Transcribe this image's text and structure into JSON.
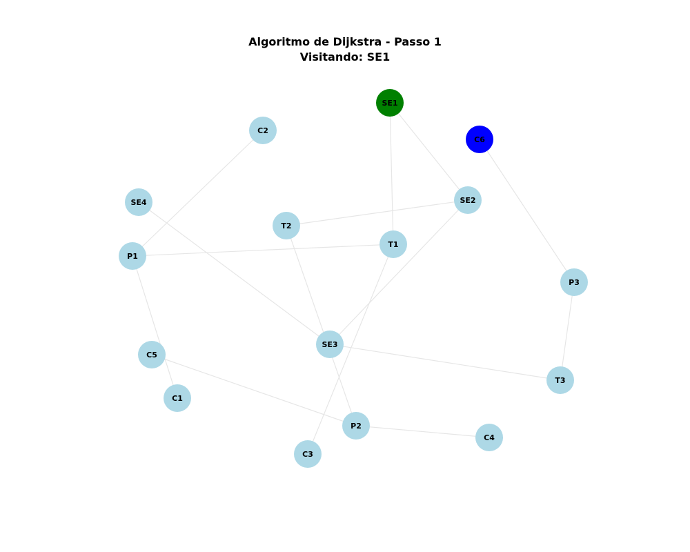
{
  "title": "Algoritmo de Dijkstra - Passo 1",
  "subtitle": "Visitando: SE1",
  "colors": {
    "default_node": "#add8e6",
    "current_node": "#008000",
    "highlight_node": "#0000ff",
    "edge": "#e6e6e6"
  },
  "nodes": [
    {
      "id": "SE1",
      "label": "SE1",
      "state": "current"
    },
    {
      "id": "C6",
      "label": "C6",
      "state": "highlight"
    },
    {
      "id": "C2",
      "label": "C2",
      "state": "default"
    },
    {
      "id": "SE2",
      "label": "SE2",
      "state": "default"
    },
    {
      "id": "SE4",
      "label": "SE4",
      "state": "default"
    },
    {
      "id": "T2",
      "label": "T2",
      "state": "default"
    },
    {
      "id": "T1",
      "label": "T1",
      "state": "default"
    },
    {
      "id": "P1",
      "label": "P1",
      "state": "default"
    },
    {
      "id": "P3",
      "label": "P3",
      "state": "default"
    },
    {
      "id": "SE3",
      "label": "SE3",
      "state": "default"
    },
    {
      "id": "C5",
      "label": "C5",
      "state": "default"
    },
    {
      "id": "T3",
      "label": "T3",
      "state": "default"
    },
    {
      "id": "C1",
      "label": "C1",
      "state": "default"
    },
    {
      "id": "P2",
      "label": "P2",
      "state": "default"
    },
    {
      "id": "C4",
      "label": "C4",
      "state": "default"
    },
    {
      "id": "C3",
      "label": "C3",
      "state": "default"
    }
  ],
  "edges": [
    [
      "SE1",
      "T1"
    ],
    [
      "SE1",
      "SE2"
    ],
    [
      "C2",
      "P1"
    ],
    [
      "C6",
      "P3"
    ],
    [
      "SE2",
      "T2"
    ],
    [
      "SE2",
      "SE3"
    ],
    [
      "SE4",
      "SE3"
    ],
    [
      "T2",
      "P2"
    ],
    [
      "P1",
      "T1"
    ],
    [
      "T1",
      "C3"
    ],
    [
      "P1",
      "C1"
    ],
    [
      "SE3",
      "T3"
    ],
    [
      "C5",
      "P2"
    ],
    [
      "P3",
      "T3"
    ],
    [
      "P2",
      "C4"
    ]
  ]
}
